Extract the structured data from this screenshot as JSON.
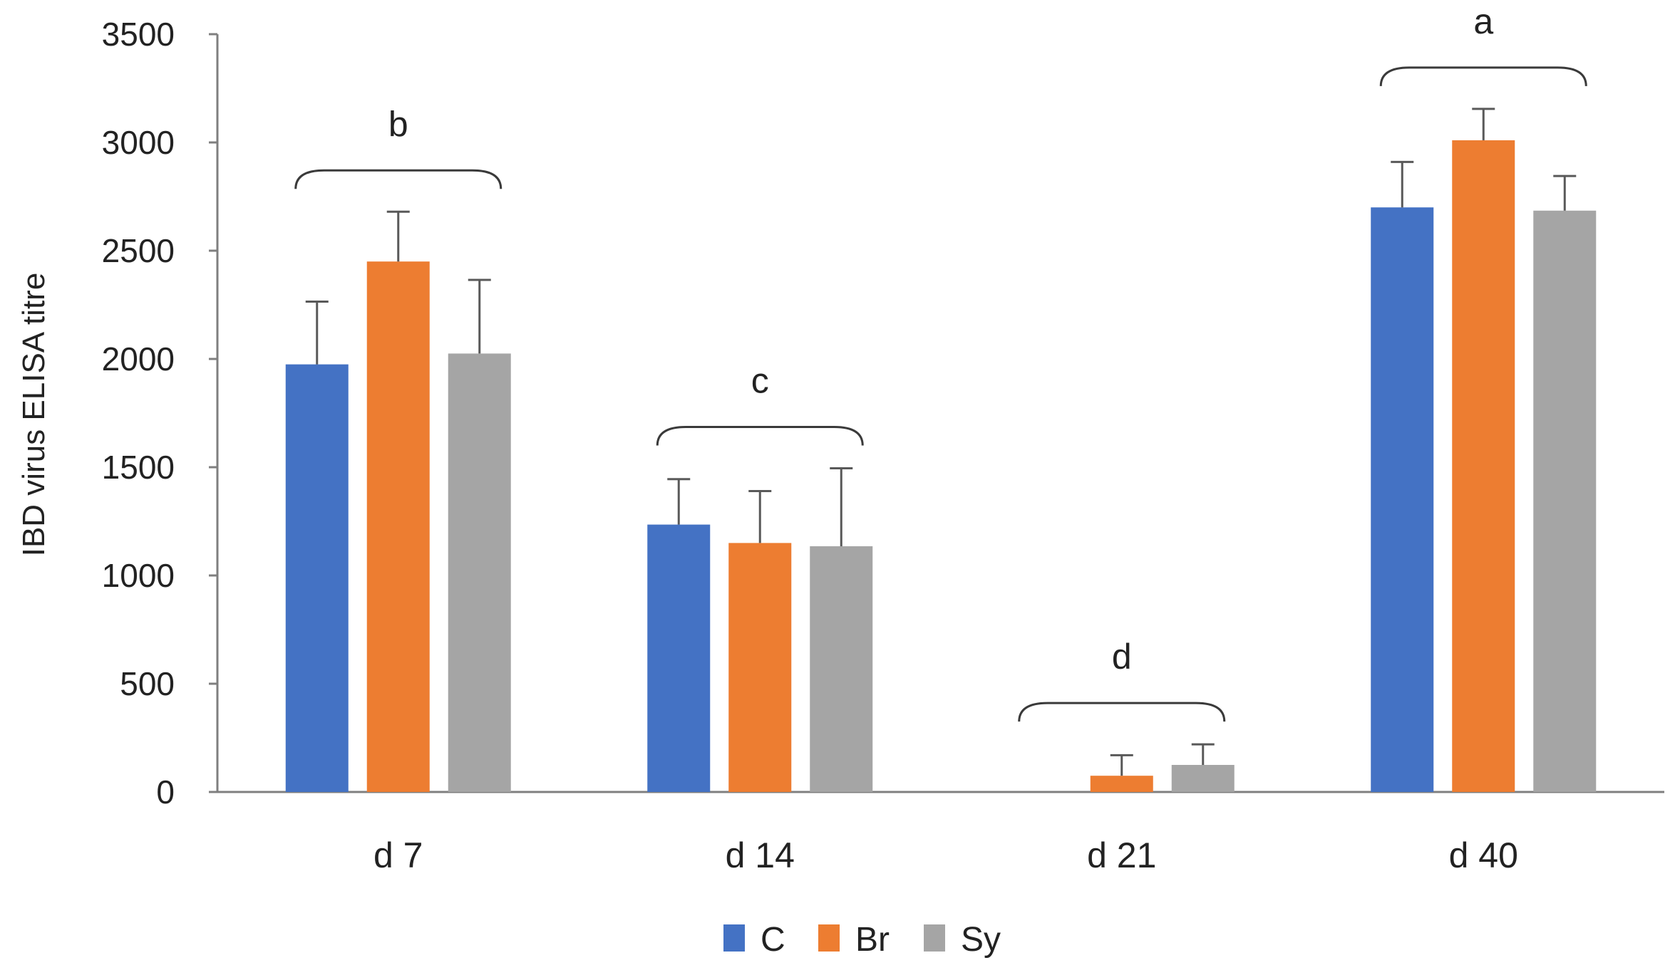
{
  "chart_data": {
    "type": "bar",
    "title": "",
    "xlabel": "",
    "ylabel": "IBD virus ELISA titre",
    "ylim": [
      0,
      3500
    ],
    "yticks": [
      0,
      500,
      1000,
      1500,
      2000,
      2500,
      3000,
      3500
    ],
    "categories": [
      "d 7",
      "d 14",
      "d 21",
      "d 40"
    ],
    "series": [
      {
        "name": "C",
        "color": "#4472C4",
        "values": [
          1975,
          1235,
          0,
          2700
        ],
        "errors": [
          290,
          210,
          0,
          210
        ]
      },
      {
        "name": "Br",
        "color": "#ED7D31",
        "values": [
          2450,
          1150,
          75,
          3010
        ],
        "errors": [
          230,
          240,
          95,
          145
        ]
      },
      {
        "name": "Sy",
        "color": "#A5A5A5",
        "values": [
          2025,
          1135,
          125,
          2685
        ],
        "errors": [
          340,
          360,
          95,
          160
        ]
      }
    ],
    "group_letters": [
      "b",
      "c",
      "d",
      "a"
    ],
    "legend_position": "bottom",
    "grid": false
  }
}
